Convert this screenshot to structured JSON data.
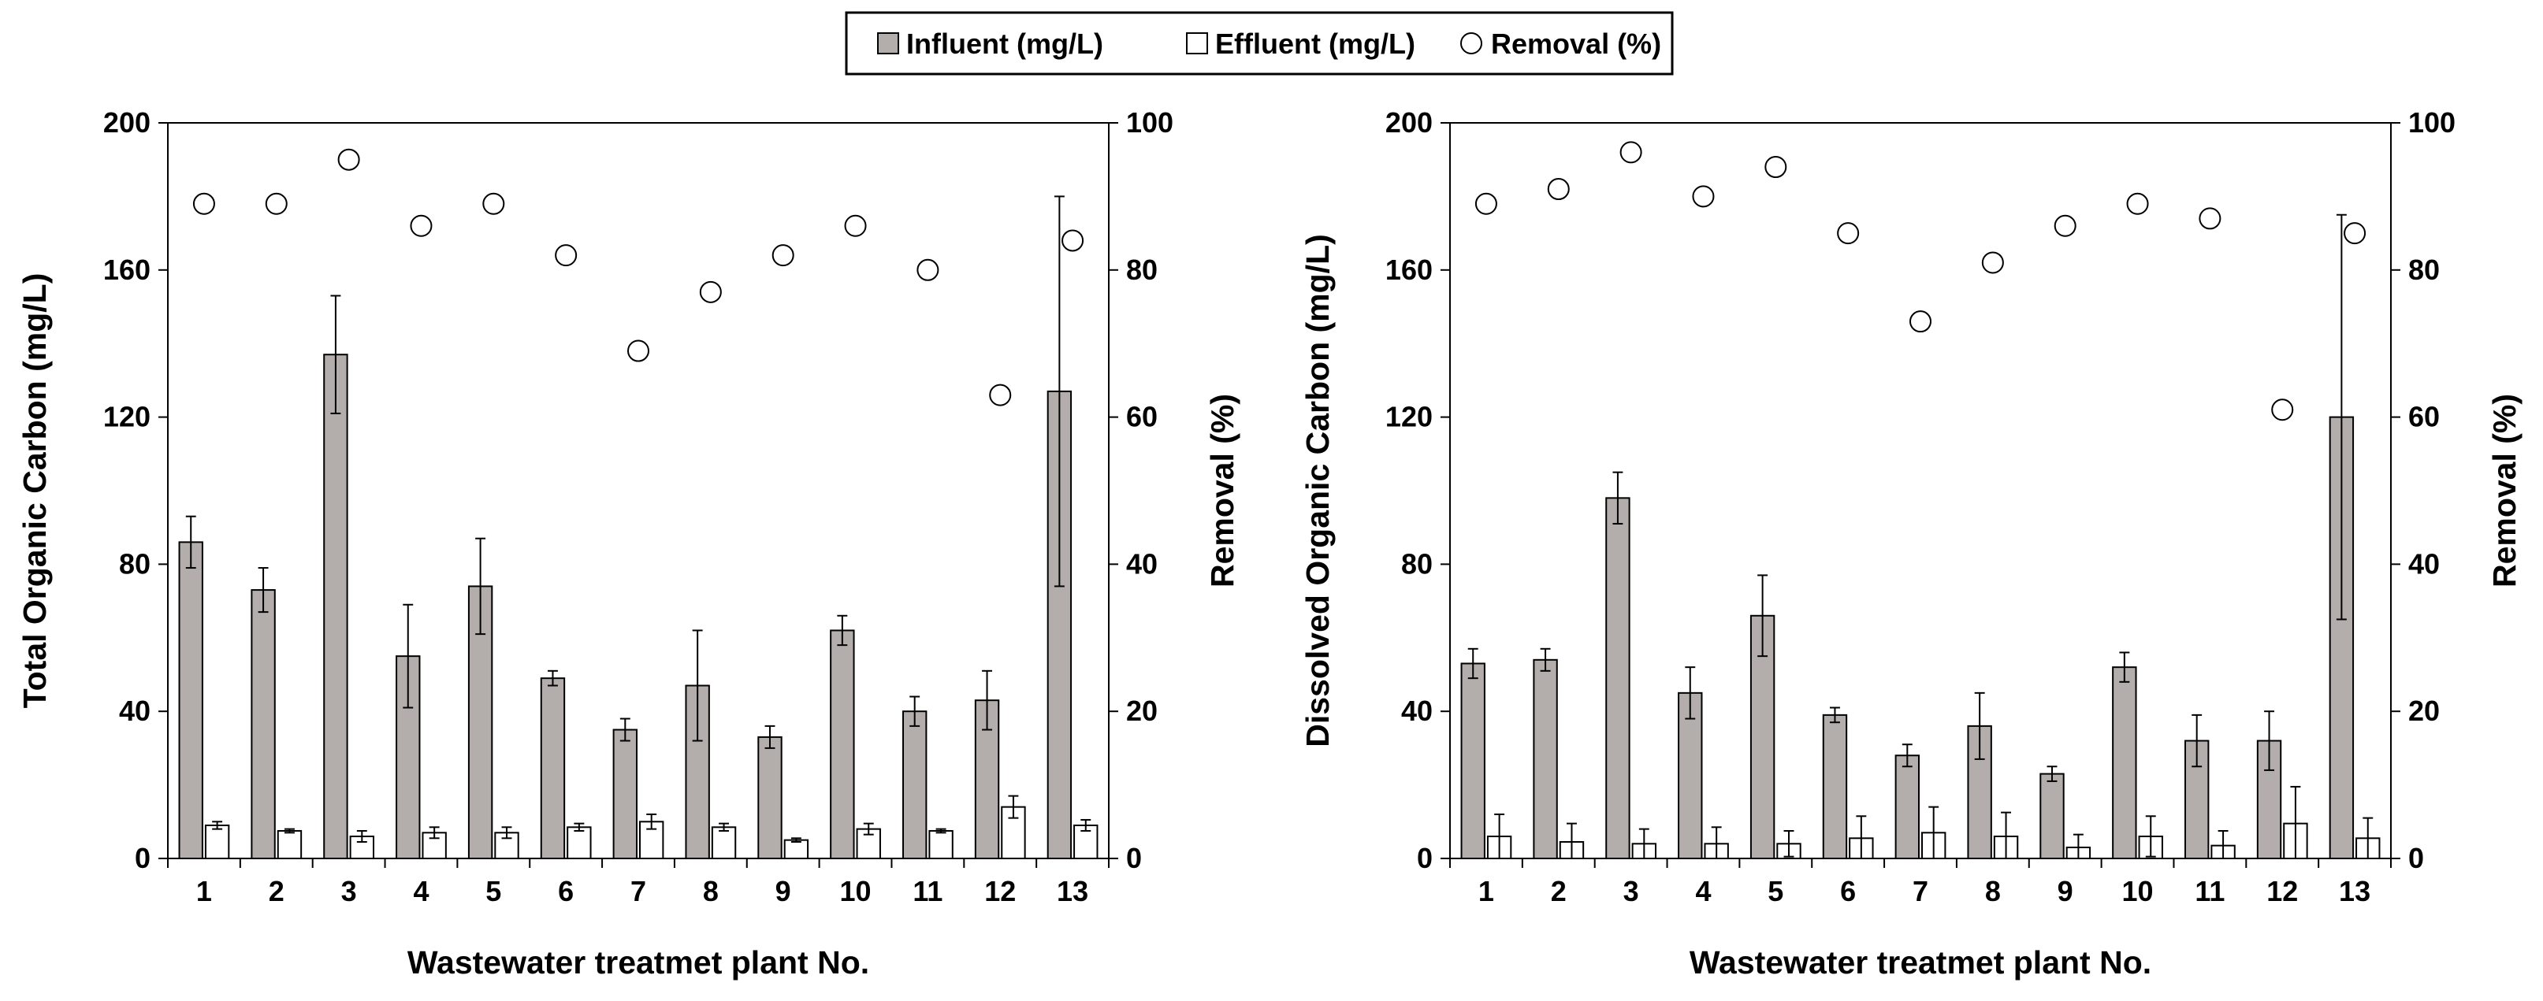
{
  "legend": {
    "influent": "Influent (mg/L)",
    "effluent": "Effluent (mg/L)",
    "removal": "Removal (%)"
  },
  "colors": {
    "influent": "#b3aeab",
    "effluent": "#ffffff",
    "removal": "#ffffff",
    "stroke": "#000000"
  },
  "chart_data": [
    {
      "type": "bar",
      "title": "",
      "xlabel": "Wastewater treatmet plant No.",
      "ylabel": "Total Organic Carbon (mg/L)",
      "y2label": "Removal (%)",
      "ylim": [
        0,
        200
      ],
      "y2lim": [
        0,
        100
      ],
      "yticks": [
        "0",
        "40",
        "80",
        "120",
        "160",
        "200"
      ],
      "y2ticks": [
        "0",
        "20",
        "40",
        "60",
        "80",
        "100"
      ],
      "categories": [
        "1",
        "2",
        "3",
        "4",
        "5",
        "6",
        "7",
        "8",
        "9",
        "10",
        "11",
        "12",
        "13"
      ],
      "series": [
        {
          "name": "Influent (mg/L)",
          "axis": "left",
          "values": [
            86,
            73,
            137,
            55,
            74,
            49,
            35,
            47,
            33,
            62,
            40,
            43,
            127
          ],
          "errors": [
            7,
            6,
            16,
            14,
            13,
            2,
            3,
            15,
            3,
            4,
            4,
            8,
            53
          ]
        },
        {
          "name": "Effluent (mg/L)",
          "axis": "left",
          "values": [
            9,
            7.5,
            6,
            7,
            7,
            8.5,
            10,
            8.5,
            5,
            8,
            7.5,
            14,
            9
          ],
          "errors": [
            1,
            0.5,
            1.5,
            1.5,
            1.5,
            1,
            2,
            1,
            0.5,
            1.5,
            0.5,
            3,
            1.5
          ]
        },
        {
          "name": "Removal (%)",
          "axis": "right",
          "values": [
            89,
            89,
            95,
            86,
            89,
            82,
            69,
            77,
            82,
            86,
            80,
            63,
            84
          ]
        }
      ]
    },
    {
      "type": "bar",
      "title": "",
      "xlabel": "Wastewater treatmet plant No.",
      "ylabel": "Dissolved Organic Carbon (mg/L)",
      "y2label": "Removal (%)",
      "ylim": [
        0,
        200
      ],
      "y2lim": [
        0,
        100
      ],
      "yticks": [
        "0",
        "40",
        "80",
        "120",
        "160",
        "200"
      ],
      "y2ticks": [
        "0",
        "20",
        "40",
        "60",
        "80",
        "100"
      ],
      "categories": [
        "1",
        "2",
        "3",
        "4",
        "5",
        "6",
        "7",
        "8",
        "9",
        "10",
        "11",
        "12",
        "13"
      ],
      "series": [
        {
          "name": "Influent (mg/L)",
          "axis": "left",
          "values": [
            53,
            54,
            98,
            45,
            66,
            39,
            28,
            36,
            23,
            52,
            32,
            32,
            120
          ],
          "errors": [
            4,
            3,
            7,
            7,
            11,
            2,
            3,
            9,
            2,
            4,
            7,
            8,
            55
          ]
        },
        {
          "name": "Effluent (mg/L)",
          "axis": "left",
          "values": [
            6,
            4.5,
            4,
            4,
            4,
            5.5,
            7,
            6,
            3,
            6,
            3.5,
            9.5,
            5.5
          ],
          "errors": [
            6,
            5,
            4,
            4.5,
            3.5,
            6,
            7,
            6.5,
            3.5,
            5.5,
            4,
            10,
            5.5
          ]
        },
        {
          "name": "Removal (%)",
          "axis": "right",
          "values": [
            89,
            91,
            96,
            90,
            94,
            85,
            73,
            81,
            86,
            89,
            87,
            61,
            85
          ]
        }
      ]
    }
  ]
}
